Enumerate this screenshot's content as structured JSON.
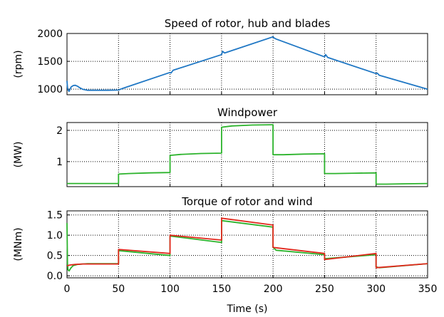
{
  "chart_data": [
    {
      "type": "line",
      "title": "Speed of rotor, hub and blades",
      "ylabel": "(rpm)",
      "xlabel": "",
      "xlim": [
        0,
        350
      ],
      "ylim": [
        900,
        2000
      ],
      "yticks": [
        1000,
        1500,
        2000
      ],
      "ytick_labels": [
        "1000",
        "1500",
        "2000"
      ],
      "xticks": [
        0,
        50,
        100,
        150,
        200,
        250,
        300,
        350
      ],
      "xtick_labels": [],
      "grid": true,
      "series": [
        {
          "color": "#1f77c4",
          "x": [
            0,
            0.5,
            1,
            2,
            3,
            4,
            6,
            8,
            10,
            12,
            15,
            20,
            30,
            40,
            50,
            52,
            55,
            100,
            101,
            103,
            150,
            151,
            153,
            200,
            201,
            203,
            250,
            251,
            253,
            300,
            301,
            303,
            350
          ],
          "y": [
            1150,
            1030,
            990,
            960,
            1000,
            1040,
            1065,
            1070,
            1055,
            1030,
            1000,
            980,
            980,
            980,
            985,
            1000,
            1020,
            1300,
            1290,
            1340,
            1620,
            1680,
            1650,
            1940,
            1920,
            1900,
            1580,
            1620,
            1570,
            1280,
            1290,
            1250,
            1000
          ]
        }
      ]
    },
    {
      "type": "line",
      "title": "Windpower",
      "ylabel": "(MW)",
      "xlabel": "",
      "xlim": [
        0,
        350
      ],
      "ylim": [
        0.2,
        2.25
      ],
      "yticks": [
        1,
        2
      ],
      "ytick_labels": [
        "1",
        "2"
      ],
      "xticks": [
        0,
        50,
        100,
        150,
        200,
        250,
        300,
        350
      ],
      "xtick_labels": [],
      "grid": true,
      "series": [
        {
          "color": "#2cb32c",
          "x": [
            0,
            50,
            50,
            60,
            80,
            100,
            100,
            110,
            130,
            150,
            150,
            160,
            180,
            200,
            200,
            210,
            230,
            250,
            250,
            260,
            280,
            300,
            300,
            310,
            330,
            350
          ],
          "y": [
            0.3,
            0.3,
            0.6,
            0.62,
            0.64,
            0.65,
            1.2,
            1.23,
            1.26,
            1.27,
            2.1,
            2.14,
            2.17,
            2.18,
            1.22,
            1.22,
            1.24,
            1.25,
            0.62,
            0.62,
            0.63,
            0.64,
            0.28,
            0.28,
            0.29,
            0.3
          ]
        }
      ]
    },
    {
      "type": "line",
      "title": "Torque of rotor and wind",
      "ylabel": "(MNm)",
      "xlabel": "Time (s)",
      "xlim": [
        0,
        350
      ],
      "ylim": [
        -0.05,
        1.6
      ],
      "yticks": [
        0.0,
        0.5,
        1.0,
        1.5
      ],
      "ytick_labels": [
        "0.0",
        "0.5",
        "1.0",
        "1.5"
      ],
      "xticks": [
        0,
        50,
        100,
        150,
        200,
        250,
        300,
        350
      ],
      "xtick_labels": [
        "0",
        "50",
        "100",
        "150",
        "200",
        "250",
        "300",
        "350"
      ],
      "grid": true,
      "series": [
        {
          "color": "#2cb32c",
          "x": [
            0,
            0.5,
            1,
            2,
            4,
            6,
            10,
            20,
            50,
            50,
            100,
            100,
            150,
            150,
            200,
            200,
            203,
            250,
            250,
            300,
            300,
            303,
            350
          ],
          "y": [
            1.3,
            0.3,
            0.15,
            0.12,
            0.2,
            0.25,
            0.28,
            0.3,
            0.3,
            0.62,
            0.5,
            0.98,
            0.82,
            1.36,
            1.2,
            0.7,
            0.63,
            0.52,
            0.42,
            0.52,
            0.22,
            0.2,
            0.3
          ]
        },
        {
          "color": "#e0281c",
          "x": [
            0,
            1,
            2,
            4,
            8,
            15,
            20,
            50,
            50,
            100,
            100,
            150,
            150,
            200,
            200,
            250,
            250,
            300,
            300,
            350
          ],
          "y": [
            0.25,
            0.25,
            0.26,
            0.27,
            0.28,
            0.29,
            0.29,
            0.29,
            0.65,
            0.55,
            1.0,
            0.88,
            1.42,
            1.25,
            0.7,
            0.55,
            0.4,
            0.55,
            0.2,
            0.3
          ]
        }
      ]
    }
  ]
}
